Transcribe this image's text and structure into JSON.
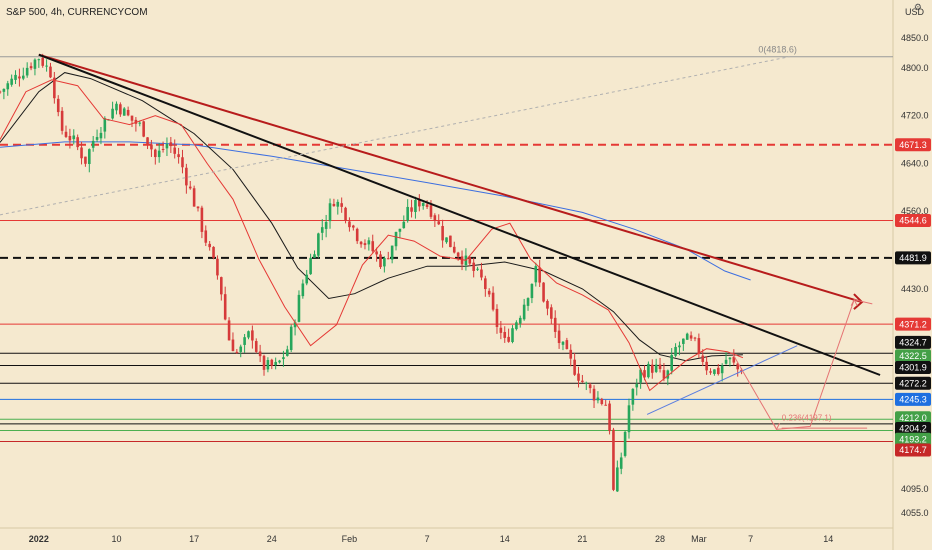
{
  "title": "S&P 500, 4h, CURRENCYCOM",
  "currency": "USD",
  "icons": {
    "settings": "settings-icon"
  },
  "chart_data": {
    "type": "candlestick",
    "title": "S&P 500, 4h, CURRENCYCOM",
    "ylim": [
      4030,
      4880
    ],
    "y_ticks": [
      4055.0,
      4095.0,
      4430.0,
      4560.0,
      4640.0,
      4720.0,
      4800.0,
      4850.0
    ],
    "x_ticks": [
      {
        "label": "2022",
        "t": 0
      },
      {
        "label": "10",
        "t": 30
      },
      {
        "label": "17",
        "t": 60
      },
      {
        "label": "24",
        "t": 90
      },
      {
        "label": "Feb",
        "t": 120
      },
      {
        "label": "7",
        "t": 150
      },
      {
        "label": "14",
        "t": 180
      },
      {
        "label": "21",
        "t": 210
      },
      {
        "label": "28",
        "t": 240
      },
      {
        "label": "Mar",
        "t": 255
      },
      {
        "label": "7",
        "t": 275
      },
      {
        "label": "14",
        "t": 305
      }
    ],
    "xlim": [
      -15,
      330
    ],
    "last_bar": 272,
    "horizontal_levels": [
      {
        "value": 4818.6,
        "color": "#9a9a9a",
        "style": "solid",
        "label": "0(4818.6)"
      },
      {
        "value": 4671.3,
        "color": "#e53935",
        "style": "dashed",
        "tag": "4671.3"
      },
      {
        "value": 4544.6,
        "color": "#e53935",
        "style": "solid",
        "tag": "4544.6"
      },
      {
        "value": 4481.9,
        "color": "#111111",
        "style": "dashed",
        "tag": "4481.9"
      },
      {
        "value": 4371.2,
        "color": "#e53935",
        "style": "solid",
        "tag": "4371.2"
      },
      {
        "value": 4322.5,
        "color": "#111111",
        "style": "solid",
        "tag": "4322.5"
      },
      {
        "value": 4301.9,
        "color": "#111111",
        "style": "solid",
        "tag": "4301.9"
      },
      {
        "value": 4272.2,
        "color": "#111111",
        "style": "solid",
        "tag": "4272.2"
      },
      {
        "value": 4245.3,
        "color": "#1e6fe0",
        "style": "solid",
        "tag": "4245.3"
      },
      {
        "value": 4212.0,
        "color": "#4caf50",
        "style": "solid",
        "tag": "4212.0"
      },
      {
        "value": 4204.2,
        "color": "#111111",
        "style": "solid",
        "tag": "4204.2"
      },
      {
        "value": 4193.2,
        "color": "#4caf50",
        "style": "solid",
        "tag": "4193.2"
      },
      {
        "value": 4174.7,
        "color": "#c62828",
        "style": "solid",
        "tag": "4174.7"
      }
    ],
    "price_tags": [
      {
        "value": "4671.3",
        "bg": "#e53935",
        "fg": "#ffffff",
        "at": 4671.3
      },
      {
        "value": "4544.6",
        "bg": "#e53935",
        "fg": "#ffffff",
        "at": 4544.6
      },
      {
        "value": "4481.9",
        "bg": "#111111",
        "fg": "#ffffff",
        "at": 4481.9
      },
      {
        "value": "4371.2",
        "bg": "#e53935",
        "fg": "#ffffff",
        "at": 4371.2
      },
      {
        "value": "4324.7",
        "bg": "#111111",
        "fg": "#ffffff",
        "at": 4340.5
      },
      {
        "value": "4322.5",
        "bg": "#43a047",
        "fg": "#ffffff",
        "at": 4318.0
      },
      {
        "value": "4301.9",
        "bg": "#111111",
        "fg": "#ffffff",
        "at": 4298.5
      },
      {
        "value": "4272.2",
        "bg": "#111111",
        "fg": "#ffffff",
        "at": 4272.2
      },
      {
        "value": "4245.3",
        "bg": "#1e6fe0",
        "fg": "#ffffff",
        "at": 4245.3
      },
      {
        "value": "4212.0",
        "bg": "#43a047",
        "fg": "#ffffff",
        "at": 4214.5
      },
      {
        "value": "4204.2",
        "bg": "#111111",
        "fg": "#ffffff",
        "at": 4196.5
      },
      {
        "value": "4193.2",
        "bg": "#43a047",
        "fg": "#ffffff",
        "at": 4178.5
      },
      {
        "value": "4174.7",
        "bg": "#c62828",
        "fg": "#ffffff",
        "at": 4160.5
      }
    ],
    "trendlines": [
      {
        "color": "#b71c1c",
        "width": 2,
        "from": [
          0,
          4822
        ],
        "to": [
          318,
          4408
        ]
      },
      {
        "color": "#111111",
        "width": 2,
        "from": [
          0,
          4822
        ],
        "to": [
          325,
          4286
        ]
      },
      {
        "color": "#5a7de0",
        "width": 1,
        "from": [
          235,
          4220
        ],
        "to": [
          293,
          4335
        ]
      },
      {
        "color": "#b0b0b0",
        "width": 1,
        "dashed": true,
        "from": [
          -15,
          4554
        ],
        "to": [
          290,
          4818.6
        ]
      }
    ],
    "fib_label": {
      "text": "0.236(4197.1)",
      "t": 287,
      "value": 4210,
      "color": "#e57373"
    },
    "fib_line": {
      "value": 4197.1,
      "from": 287,
      "to": 320,
      "color": "#e57373"
    },
    "projection": {
      "color": "#e57373",
      "points": [
        [
          268,
          4322
        ],
        [
          285,
          4195
        ],
        [
          298,
          4200
        ],
        [
          315,
          4412
        ],
        [
          322,
          4405
        ]
      ]
    },
    "ma_blue": {
      "color": "#3d6fe0",
      "points": [
        [
          -15,
          4667
        ],
        [
          10,
          4676
        ],
        [
          35,
          4676
        ],
        [
          60,
          4671
        ],
        [
          90,
          4652
        ],
        [
          120,
          4630
        ],
        [
          150,
          4608
        ],
        [
          180,
          4585
        ],
        [
          210,
          4558
        ],
        [
          230,
          4530
        ],
        [
          250,
          4497
        ],
        [
          265,
          4460
        ],
        [
          275,
          4445
        ]
      ]
    },
    "ma_black": {
      "color": "#1a1a1a",
      "points": [
        [
          -15,
          4675
        ],
        [
          0,
          4760
        ],
        [
          10,
          4792
        ],
        [
          20,
          4782
        ],
        [
          40,
          4745
        ],
        [
          60,
          4690
        ],
        [
          75,
          4630
        ],
        [
          90,
          4540
        ],
        [
          100,
          4465
        ],
        [
          112,
          4414
        ],
        [
          122,
          4422
        ],
        [
          135,
          4448
        ],
        [
          150,
          4468
        ],
        [
          165,
          4468
        ],
        [
          180,
          4475
        ],
        [
          195,
          4460
        ],
        [
          210,
          4430
        ],
        [
          222,
          4392
        ],
        [
          232,
          4345
        ],
        [
          240,
          4320
        ],
        [
          250,
          4310
        ],
        [
          260,
          4318
        ],
        [
          272,
          4320
        ]
      ]
    },
    "ma_red": {
      "color": "#e53935",
      "points": [
        [
          -15,
          4680
        ],
        [
          -5,
          4760
        ],
        [
          5,
          4780
        ],
        [
          15,
          4770
        ],
        [
          25,
          4715
        ],
        [
          35,
          4705
        ],
        [
          45,
          4720
        ],
        [
          55,
          4705
        ],
        [
          65,
          4640
        ],
        [
          75,
          4580
        ],
        [
          85,
          4480
        ],
        [
          95,
          4400
        ],
        [
          105,
          4335
        ],
        [
          115,
          4370
        ],
        [
          125,
          4470
        ],
        [
          135,
          4520
        ],
        [
          145,
          4510
        ],
        [
          155,
          4485
        ],
        [
          165,
          4478
        ],
        [
          175,
          4530
        ],
        [
          182,
          4540
        ],
        [
          190,
          4480
        ],
        [
          200,
          4440
        ],
        [
          210,
          4420
        ],
        [
          220,
          4395
        ],
        [
          228,
          4340
        ],
        [
          236,
          4260
        ],
        [
          243,
          4285
        ],
        [
          250,
          4310
        ],
        [
          258,
          4330
        ],
        [
          266,
          4325
        ],
        [
          272,
          4315
        ]
      ]
    },
    "candles": {
      "anchors": [
        [
          -15,
          4760
        ],
        [
          -5,
          4800
        ],
        [
          0,
          4818
        ],
        [
          5,
          4790
        ],
        [
          8,
          4700
        ],
        [
          13,
          4680
        ],
        [
          18,
          4645
        ],
        [
          22,
          4690
        ],
        [
          30,
          4740
        ],
        [
          35,
          4715
        ],
        [
          40,
          4700
        ],
        [
          45,
          4650
        ],
        [
          50,
          4675
        ],
        [
          55,
          4640
        ],
        [
          60,
          4575
        ],
        [
          65,
          4505
        ],
        [
          70,
          4440
        ],
        [
          73,
          4350
        ],
        [
          77,
          4320
        ],
        [
          82,
          4360
        ],
        [
          86,
          4300
        ],
        [
          92,
          4300
        ],
        [
          96,
          4330
        ],
        [
          102,
          4440
        ],
        [
          108,
          4520
        ],
        [
          114,
          4580
        ],
        [
          118,
          4560
        ],
        [
          123,
          4520
        ],
        [
          128,
          4500
        ],
        [
          133,
          4470
        ],
        [
          138,
          4520
        ],
        [
          143,
          4560
        ],
        [
          148,
          4580
        ],
        [
          152,
          4560
        ],
        [
          156,
          4520
        ],
        [
          160,
          4500
        ],
        [
          166,
          4470
        ],
        [
          172,
          4440
        ],
        [
          176,
          4380
        ],
        [
          180,
          4340
        ],
        [
          186,
          4390
        ],
        [
          192,
          4460
        ],
        [
          196,
          4400
        ],
        [
          200,
          4350
        ],
        [
          205,
          4310
        ],
        [
          210,
          4275
        ],
        [
          215,
          4250
        ],
        [
          220,
          4235
        ],
        [
          222,
          4090
        ],
        [
          225,
          4150
        ],
        [
          228,
          4235
        ],
        [
          232,
          4290
        ],
        [
          238,
          4300
        ],
        [
          242,
          4275
        ],
        [
          246,
          4330
        ],
        [
          250,
          4345
        ],
        [
          254,
          4335
        ],
        [
          258,
          4300
        ],
        [
          262,
          4290
        ],
        [
          266,
          4315
        ],
        [
          270,
          4295
        ],
        [
          272,
          4300
        ]
      ],
      "bull_color": "#26a65b",
      "bear_color": "#d63a3a"
    }
  }
}
